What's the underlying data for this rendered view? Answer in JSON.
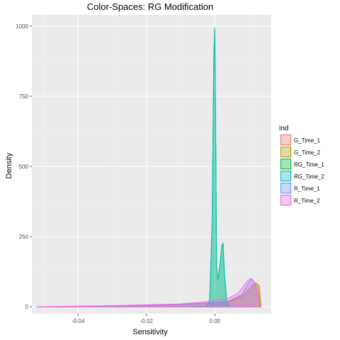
{
  "chart_data": {
    "type": "area",
    "title": "Color-Spaces: RG Modification",
    "xlabel": "Sensitivity",
    "ylabel": "Density",
    "xlim": [
      -0.0535,
      0.0165
    ],
    "ylim": [
      -25,
      1040
    ],
    "x_ticks": [
      -0.04,
      -0.02,
      0.0
    ],
    "x_tick_labels": [
      "-0.04",
      "-0.02",
      "0.00"
    ],
    "y_ticks": [
      0,
      250,
      500,
      750,
      1000
    ],
    "y_tick_labels": [
      "0",
      "250",
      "500",
      "750",
      "1000"
    ],
    "grid": true,
    "legend": {
      "title": "ind",
      "placement": "right"
    },
    "series": [
      {
        "name": "G_Time_1",
        "color": "#F8766D",
        "x": [
          -0.052,
          -0.03,
          -0.01,
          -0.004,
          0.0,
          0.004,
          0.008,
          0.0105,
          0.0115,
          0.0125,
          0.0135
        ],
        "y": [
          0,
          3,
          8,
          12,
          15,
          20,
          40,
          70,
          85,
          80,
          0
        ]
      },
      {
        "name": "G_Time_2",
        "color": "#B79F00",
        "x": [
          -0.052,
          -0.03,
          -0.01,
          -0.004,
          0.0,
          0.004,
          0.008,
          0.0105,
          0.012,
          0.013,
          0.0135
        ],
        "y": [
          0,
          3,
          8,
          12,
          15,
          18,
          35,
          60,
          85,
          75,
          0
        ]
      },
      {
        "name": "RG_Time_1",
        "color": "#00BA38",
        "x": [
          -0.007,
          -0.0025,
          -0.0015,
          -0.0008,
          -0.0003,
          0.0,
          0.0002,
          0.0005,
          0.0009,
          0.0015,
          0.002,
          0.0024,
          0.0028,
          0.0035,
          0.0045
        ],
        "y": [
          0,
          2,
          25,
          300,
          900,
          985,
          700,
          150,
          95,
          150,
          215,
          228,
          120,
          15,
          0
        ]
      },
      {
        "name": "RG_Time_2",
        "color": "#00BFC4",
        "x": [
          -0.007,
          -0.0025,
          -0.0015,
          -0.0008,
          -0.0003,
          0.0,
          0.0002,
          0.0005,
          0.0009,
          0.0015,
          0.002,
          0.0024,
          0.0028,
          0.0035,
          0.0045
        ],
        "y": [
          0,
          2,
          25,
          300,
          900,
          995,
          700,
          150,
          95,
          145,
          210,
          222,
          115,
          15,
          0
        ]
      },
      {
        "name": "R_Time_1",
        "color": "#619CFF",
        "x": [
          -0.052,
          -0.03,
          -0.01,
          -0.004,
          0.0,
          0.004,
          0.008,
          0.0095,
          0.0108,
          0.012,
          0.0133
        ],
        "y": [
          0,
          3,
          8,
          12,
          15,
          20,
          45,
          80,
          100,
          75,
          0
        ]
      },
      {
        "name": "R_Time_2",
        "color": "#F564E3",
        "x": [
          -0.052,
          -0.03,
          -0.01,
          -0.004,
          0.0,
          0.004,
          0.007,
          0.009,
          0.0103,
          0.0112,
          0.0122,
          0.0133
        ],
        "y": [
          0,
          4,
          10,
          16,
          22,
          30,
          50,
          85,
          100,
          95,
          60,
          0
        ]
      }
    ]
  }
}
